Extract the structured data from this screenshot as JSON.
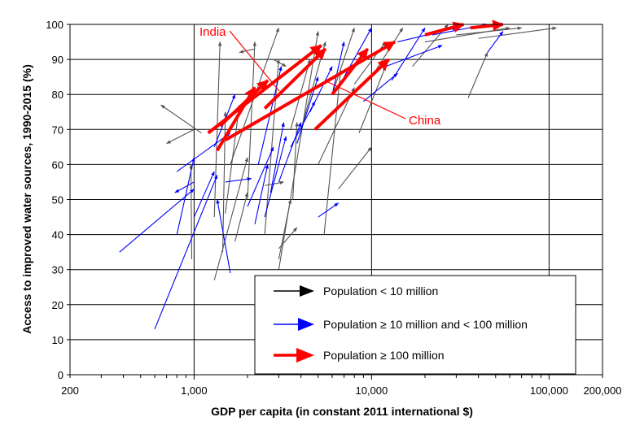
{
  "chart_data": {
    "type": "scatter",
    "xlabel": "GDP per capita (in constant 2011 international $)",
    "ylabel": "Access to improved water sources, 1990-2015 (%)",
    "x_scale": "log",
    "xlim": [
      200,
      200000
    ],
    "ylim": [
      0,
      100
    ],
    "x_ticks": [
      200,
      1000,
      10000,
      100000,
      200000
    ],
    "x_tick_labels": [
      "200",
      "1,000",
      "10,000",
      "100,000",
      "200,000"
    ],
    "y_ticks": [
      0,
      10,
      20,
      30,
      40,
      50,
      60,
      70,
      80,
      90,
      100
    ],
    "y_tick_labels": [
      "0",
      "10",
      "20",
      "30",
      "40",
      "50",
      "60",
      "70",
      "80",
      "90",
      "100"
    ],
    "grid": true,
    "legend_position": "bottom-right",
    "legend": [
      {
        "label": "Population < 10 million",
        "color": "#000000"
      },
      {
        "label": "Population ≥ 10 million and < 100 million",
        "color": "#0000ff"
      },
      {
        "label": "Population ≥ 100 million",
        "color": "#ff0000"
      }
    ],
    "annotations": [
      {
        "text": "India",
        "color": "#ff0000"
      },
      {
        "text": "China",
        "color": "#ff0000"
      }
    ],
    "series": [
      {
        "name": "Population < 10 million",
        "color": "#555555",
        "arrows": [
          [
            1300,
            45,
            1400,
            95
          ],
          [
            1100,
            69,
            650,
            77
          ],
          [
            1000,
            70,
            700,
            66
          ],
          [
            1450,
            35,
            1500,
            75
          ],
          [
            2000,
            50,
            2200,
            95
          ],
          [
            2500,
            40,
            3000,
            90
          ],
          [
            3000,
            30,
            5000,
            98
          ],
          [
            1600,
            60,
            3000,
            99
          ],
          [
            3500,
            70,
            4500,
            90
          ],
          [
            6000,
            80,
            8000,
            99
          ],
          [
            10000,
            85,
            15000,
            99
          ],
          [
            20000,
            95,
            60000,
            99
          ],
          [
            35000,
            79,
            45000,
            92
          ],
          [
            3000,
            33,
            3500,
            50
          ],
          [
            6500,
            53,
            10000,
            65
          ],
          [
            3000,
            36,
            3800,
            42
          ],
          [
            8500,
            69,
            12000,
            88
          ],
          [
            17000,
            88,
            27000,
            100
          ],
          [
            40000,
            96,
            110000,
            99
          ],
          [
            1700,
            38,
            2000,
            52
          ],
          [
            2500,
            54,
            3200,
            55
          ],
          [
            3600,
            50,
            3800,
            72
          ],
          [
            5400,
            40,
            6700,
            87
          ],
          [
            1300,
            27,
            2000,
            62
          ],
          [
            5000,
            60,
            8000,
            82
          ],
          [
            30000,
            97,
            70000,
            99
          ],
          [
            2200,
            93,
            1800,
            92
          ],
          [
            2800,
            90,
            3300,
            88
          ],
          [
            970,
            33,
            960,
            60
          ],
          [
            1500,
            46,
            1800,
            77
          ],
          [
            4000,
            70,
            5500,
            95
          ],
          [
            8000,
            83,
            12000,
            95
          ]
        ]
      },
      {
        "name": "Population ≥ 10 million and < 100 million",
        "color": "#0000ff",
        "arrows": [
          [
            380,
            35,
            1000,
            53
          ],
          [
            600,
            13,
            1350,
            57
          ],
          [
            800,
            40,
            1000,
            62
          ],
          [
            1000,
            55,
            780,
            52
          ],
          [
            1600,
            29,
            1350,
            50
          ],
          [
            1500,
            55,
            2100,
            56
          ],
          [
            2200,
            43,
            2600,
            60
          ],
          [
            2000,
            48,
            2800,
            65
          ],
          [
            2500,
            45,
            3300,
            68
          ],
          [
            3000,
            55,
            4000,
            72
          ],
          [
            3500,
            65,
            4800,
            78
          ],
          [
            4500,
            75,
            6000,
            88
          ],
          [
            5000,
            45,
            6500,
            49
          ],
          [
            6000,
            80,
            7000,
            95
          ],
          [
            9000,
            78,
            14000,
            86
          ],
          [
            12000,
            88,
            25000,
            94
          ],
          [
            13000,
            84,
            20000,
            99
          ],
          [
            800,
            58,
            1600,
            69
          ],
          [
            1000,
            45,
            1300,
            58
          ],
          [
            1300,
            65,
            1700,
            80
          ],
          [
            2300,
            60,
            3100,
            88
          ],
          [
            7000,
            85,
            10000,
            99
          ],
          [
            14000,
            95,
            30000,
            99
          ],
          [
            22000,
            97,
            45000,
            100
          ],
          [
            45000,
            92,
            55000,
            98
          ],
          [
            3800,
            66,
            5000,
            85
          ],
          [
            2700,
            52,
            3200,
            72
          ]
        ]
      },
      {
        "name": "Population ≥ 100 million",
        "color": "#ff0000",
        "arrows": [
          [
            1200,
            69,
            5200,
            94
          ],
          [
            1500,
            67,
            13500,
            95
          ],
          [
            4800,
            70,
            12500,
            90
          ],
          [
            1350,
            64,
            2200,
            82
          ],
          [
            2500,
            76,
            5500,
            93
          ],
          [
            6000,
            80,
            9500,
            93
          ],
          [
            1400,
            71,
            2600,
            84
          ],
          [
            20000,
            97,
            33000,
            100
          ],
          [
            36000,
            99,
            55000,
            100
          ]
        ]
      }
    ]
  }
}
